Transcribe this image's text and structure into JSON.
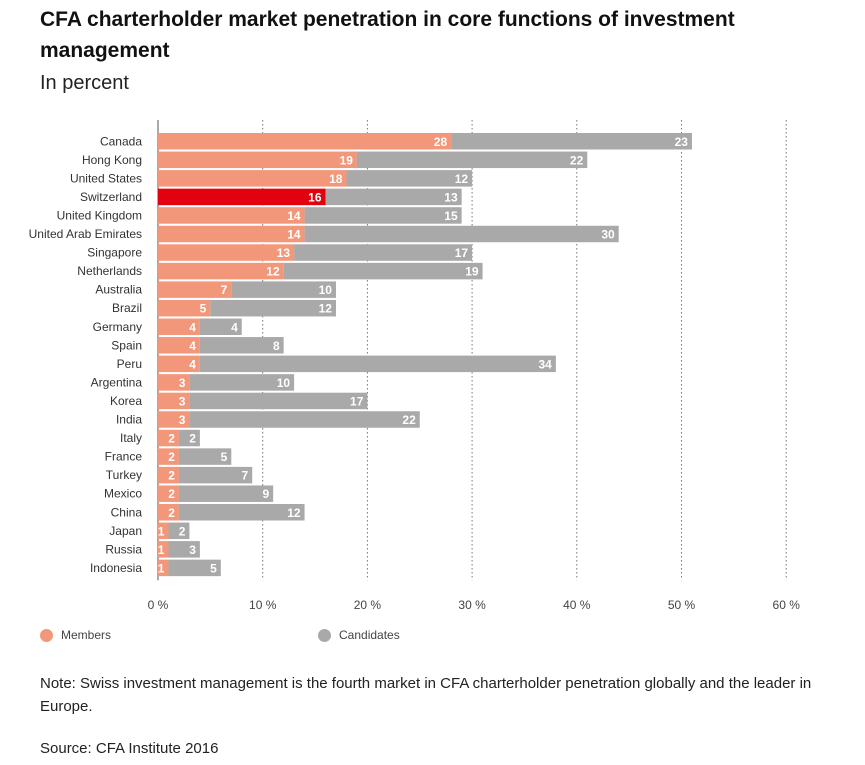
{
  "chart_data": {
    "type": "bar",
    "orientation": "horizontal",
    "stacked": true,
    "title": "CFA charterholder market penetration in core functions of investment management",
    "subtitle": "In percent",
    "categories": [
      "Canada",
      "Hong Kong",
      "United States",
      "Switzerland",
      "United Kingdom",
      "United Arab Emirates",
      "Singapore",
      "Netherlands",
      "Australia",
      "Brazil",
      "Germany",
      "Spain",
      "Peru",
      "Argentina",
      "Korea",
      "India",
      "Italy",
      "France",
      "Turkey",
      "Mexico",
      "China",
      "Japan",
      "Russia",
      "Indonesia"
    ],
    "series": [
      {
        "name": "Members",
        "values": [
          28,
          19,
          18,
          16,
          14,
          14,
          13,
          12,
          7,
          5,
          4,
          4,
          4,
          3,
          3,
          3,
          2,
          2,
          2,
          2,
          2,
          1,
          1,
          1
        ]
      },
      {
        "name": "Candidates",
        "values": [
          23,
          22,
          12,
          13,
          15,
          30,
          17,
          19,
          10,
          12,
          4,
          8,
          34,
          10,
          17,
          22,
          2,
          5,
          7,
          9,
          12,
          2,
          3,
          5
        ]
      }
    ],
    "highlight": {
      "category": "Switzerland",
      "color": "#e3000f"
    },
    "xlim": [
      0,
      60
    ],
    "xticks": [
      0,
      10,
      20,
      30,
      40,
      50,
      60
    ],
    "xtick_labels": [
      "0 %",
      "10 %",
      "20 %",
      "30 %",
      "40 %",
      "50 %",
      "60 %"
    ],
    "grid": "vertical-dotted",
    "legend_position": "bottom",
    "colors": {
      "members": "#f2977a",
      "candidates": "#a9a9a9",
      "highlight": "#e3000f"
    }
  },
  "legend": {
    "members_label": "Members",
    "candidates_label": "Candidates"
  },
  "note": "Note: Swiss investment management is the fourth market in CFA charterholder penetration globally and the leader in Europe.",
  "source": "Source: CFA Institute 2016"
}
